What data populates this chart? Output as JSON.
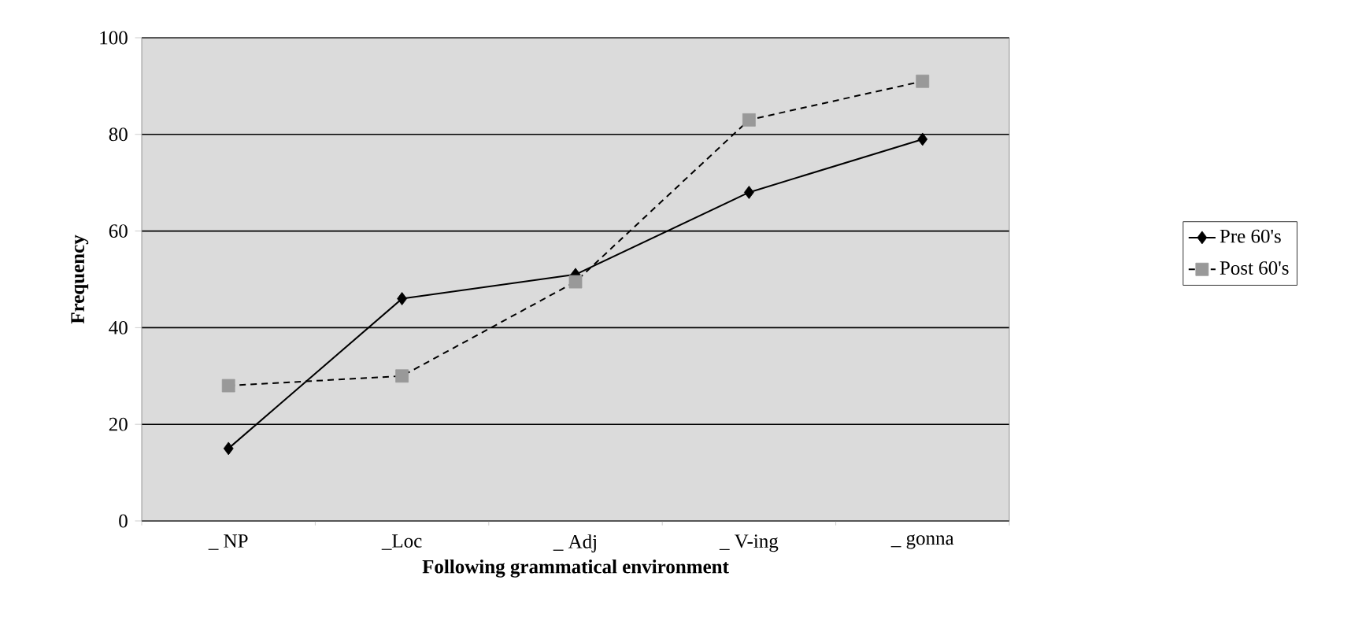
{
  "chart_data": {
    "type": "line",
    "xlabel": "Following grammatical environment",
    "ylabel": "Frequency",
    "categories": [
      "_ NP",
      "_Loc",
      "_ Adj",
      "_ V-ing",
      "_ gonna"
    ],
    "series": [
      {
        "name": "Pre 60's",
        "color": "#000000",
        "marker": "diamond",
        "line_style": "solid",
        "values": [
          15,
          46,
          51,
          68,
          79
        ]
      },
      {
        "name": "Post 60's",
        "color": "#999999",
        "marker": "square",
        "line_style": "dashed",
        "values": [
          28,
          30,
          49.5,
          83,
          91
        ]
      }
    ],
    "ylim": [
      0,
      100
    ],
    "yticks": [
      0,
      20,
      40,
      60,
      80,
      100
    ],
    "grid": "y",
    "legend": "right"
  }
}
